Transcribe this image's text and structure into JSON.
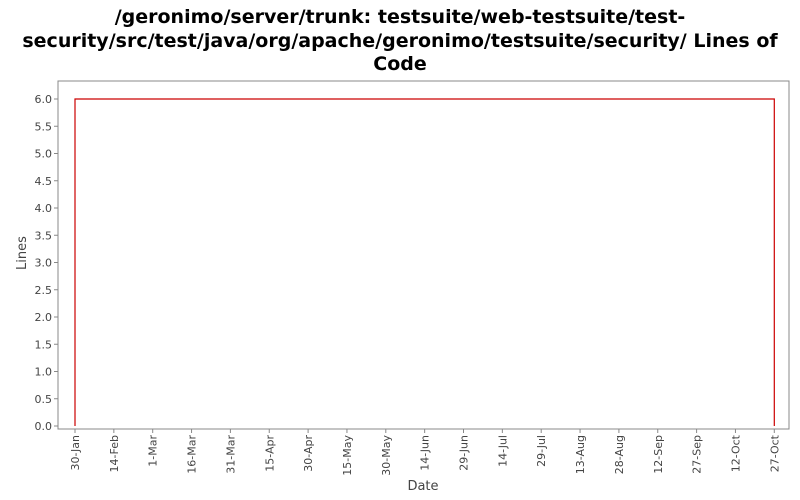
{
  "chart_data": {
    "type": "line",
    "title_lines": [
      "/geronimo/server/trunk: testsuite/web-testsuite/test-",
      "security/src/test/java/org/apache/geronimo/testsuite/security/ Lines of",
      "Code"
    ],
    "xlabel": "Date",
    "ylabel": "Lines",
    "x_tick_labels": [
      "30-Jan",
      "14-Feb",
      "1-Mar",
      "16-Mar",
      "31-Mar",
      "15-Apr",
      "30-Apr",
      "15-May",
      "30-May",
      "14-Jun",
      "29-Jun",
      "14-Jul",
      "29-Jul",
      "13-Aug",
      "28-Aug",
      "12-Sep",
      "27-Sep",
      "12-Oct",
      "27-Oct"
    ],
    "y_ticks": [
      "0.0",
      "0.5",
      "1.0",
      "1.5",
      "2.0",
      "2.5",
      "3.0",
      "3.5",
      "4.0",
      "4.5",
      "5.0",
      "5.5",
      "6.0"
    ],
    "ylim": [
      0,
      6
    ],
    "series": [
      {
        "color": "#cc0000",
        "points": [
          {
            "x": "30-Jan",
            "y": 0
          },
          {
            "x": "30-Jan",
            "y": 6
          },
          {
            "x": "27-Oct",
            "y": 6
          },
          {
            "x": "27-Oct",
            "y": 0
          }
        ]
      }
    ],
    "grid": false
  }
}
